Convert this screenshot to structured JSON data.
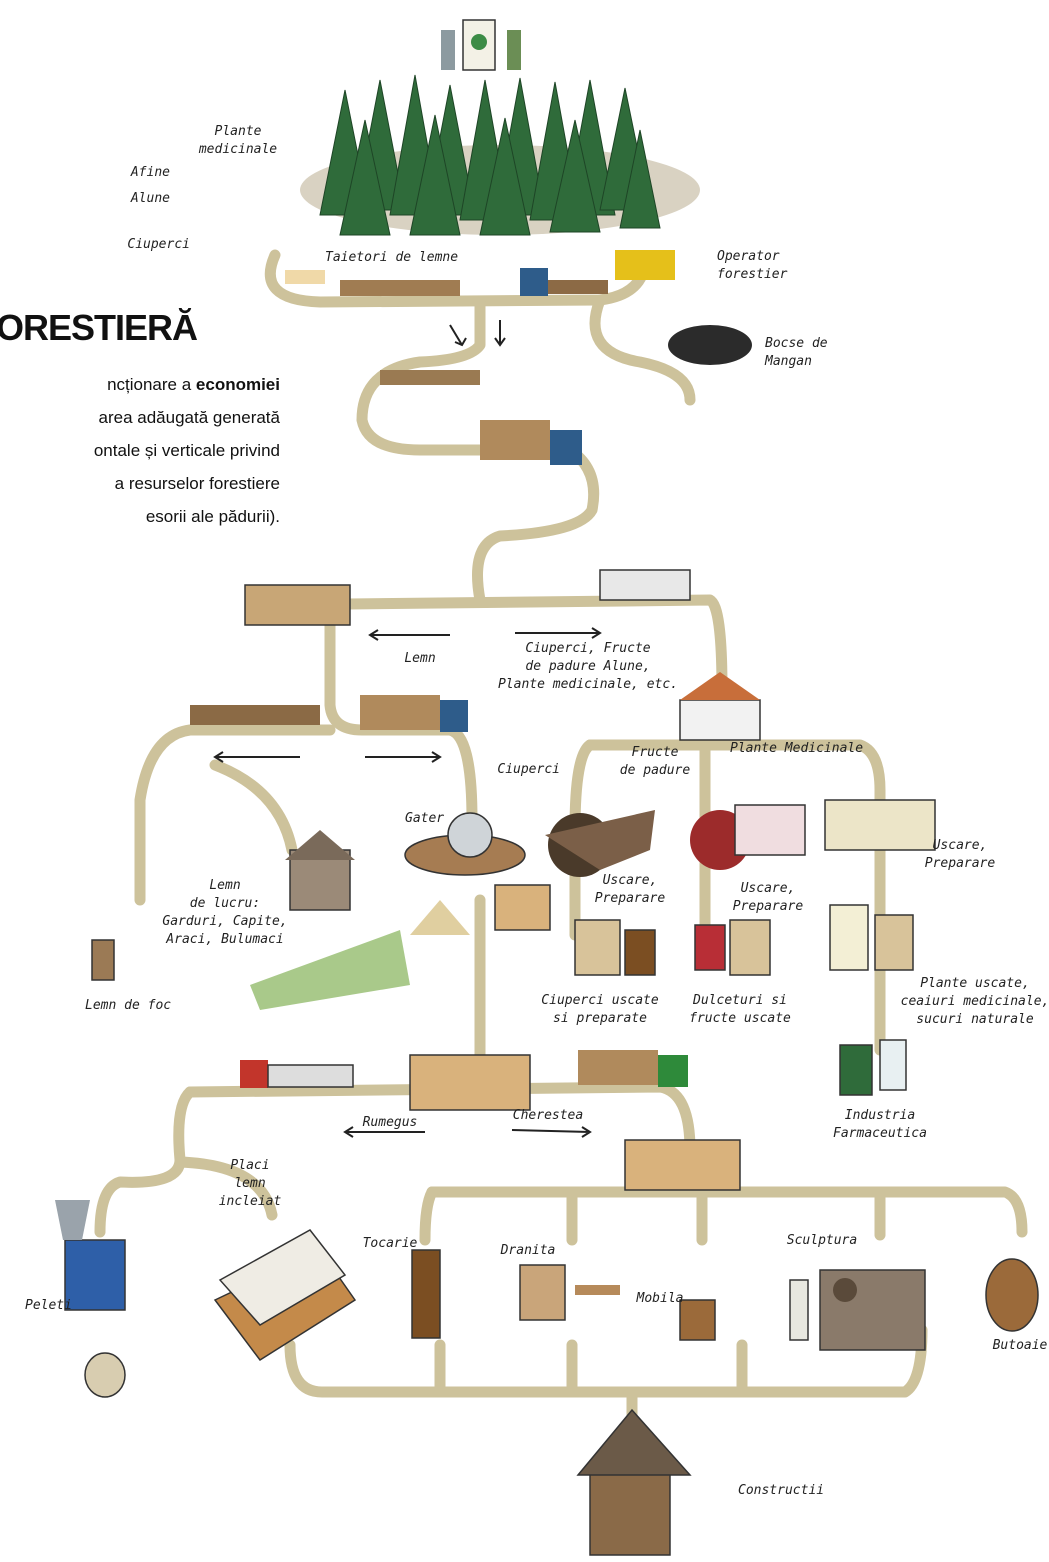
{
  "title": "ORESTIERĂ",
  "intro": {
    "first": "ncționare a ",
    "bold": "economiei",
    "lines": [
      "area adăugată generată",
      "ontale și verticale privind",
      "a resurselor forestiere",
      "esorii ale pădurii)."
    ]
  },
  "labels": [
    {
      "lines": [
        "Plante",
        "medicinale"
      ]
    },
    {
      "lines": [
        "Afine"
      ]
    },
    {
      "lines": [
        "Alune"
      ]
    },
    {
      "lines": [
        "Ciuperci"
      ]
    },
    {
      "lines": [
        "Taietori de lemne"
      ]
    },
    {
      "lines": [
        "Operator",
        "forestier"
      ]
    },
    {
      "lines": [
        "Bocse de",
        "Mangan"
      ]
    },
    {
      "lines": [
        "Lemn"
      ]
    },
    {
      "lines": [
        "Ciuperci, Fructe",
        "de padure Alune,",
        "Plante medicinale, etc."
      ]
    },
    {
      "lines": [
        "Ciuperci"
      ]
    },
    {
      "lines": [
        "Fructe",
        "de padure"
      ]
    },
    {
      "lines": [
        "Plante Medicinale"
      ]
    },
    {
      "lines": [
        "Gater"
      ]
    },
    {
      "lines": [
        "Lemn",
        "de lucru:",
        "Garduri, Capite,",
        "Araci, Bulumaci"
      ]
    },
    {
      "lines": [
        "Lemn de foc"
      ]
    },
    {
      "lines": [
        "Uscare,",
        "Preparare"
      ]
    },
    {
      "lines": [
        "Uscare,",
        "Preparare"
      ]
    },
    {
      "lines": [
        "Uscare,",
        "Preparare"
      ]
    },
    {
      "lines": [
        "Ciuperci uscate",
        "si preparate"
      ]
    },
    {
      "lines": [
        "Dulceturi si",
        "fructe uscate"
      ]
    },
    {
      "lines": [
        "Plante uscate,",
        "ceaiuri medicinale,",
        "sucuri naturale"
      ]
    },
    {
      "lines": [
        "Industria",
        "Farmaceutica"
      ]
    },
    {
      "lines": [
        "Rumegus"
      ]
    },
    {
      "lines": [
        "Cherestea"
      ]
    },
    {
      "lines": [
        "Placi",
        "lemn",
        "incleiat"
      ]
    },
    {
      "lines": [
        "Peleti"
      ]
    },
    {
      "lines": [
        "Tocarie"
      ]
    },
    {
      "lines": [
        "Dranita"
      ]
    },
    {
      "lines": [
        "Mobila"
      ]
    },
    {
      "lines": [
        "Sculptura"
      ]
    },
    {
      "lines": [
        "Butoaie"
      ]
    },
    {
      "lines": [
        "Constructii"
      ]
    }
  ]
}
